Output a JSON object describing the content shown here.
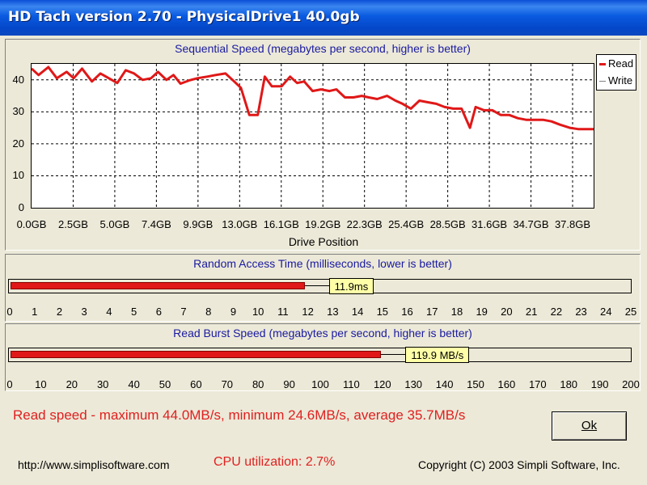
{
  "window": {
    "title": "HD Tach version 2.70 - PhysicalDrive1 40.0gb"
  },
  "sequential": {
    "title": "Sequential Speed (megabytes per second, higher is better)",
    "xaxis_title": "Drive Position",
    "legend": {
      "read": "Read",
      "write": "Write"
    }
  },
  "chart_data": {
    "type": "line",
    "title": "Sequential Speed (megabytes per second, higher is better)",
    "xlabel": "Drive Position",
    "ylabel": "",
    "ylim": [
      0,
      45
    ],
    "yticks": [
      "0",
      "10",
      "20",
      "30",
      "40"
    ],
    "xticks": [
      "0.0GB",
      "2.5GB",
      "5.0GB",
      "7.4GB",
      "9.9GB",
      "13.0GB",
      "16.1GB",
      "19.2GB",
      "22.3GB",
      "25.4GB",
      "28.5GB",
      "31.6GB",
      "34.7GB",
      "37.8GB"
    ],
    "xlim": [
      0,
      40.0
    ],
    "grid": true,
    "legend": "top-right",
    "colors": {
      "read": "#e01818",
      "write": "#808080"
    },
    "series": [
      {
        "name": "Read",
        "x": [
          0,
          0.5,
          1.2,
          1.8,
          2.5,
          3.0,
          3.6,
          4.3,
          4.9,
          5.5,
          6.1,
          6.7,
          7.3,
          7.9,
          8.5,
          9.0,
          9.6,
          10.1,
          10.6,
          11.2,
          11.8,
          12.5,
          13.1,
          13.8,
          14.3,
          14.9,
          15.5,
          16.1,
          16.6,
          17.1,
          17.8,
          18.4,
          18.9,
          19.4,
          20.0,
          20.6,
          21.2,
          21.7,
          22.3,
          22.9,
          23.5,
          24.0,
          24.6,
          25.3,
          25.9,
          26.4,
          27.0,
          27.6,
          28.2,
          28.8,
          29.4,
          30.0,
          30.6,
          31.2,
          31.6,
          32.2,
          32.8,
          33.4,
          34.0,
          34.6,
          35.2,
          35.8,
          36.4,
          37.0,
          37.6,
          38.3,
          38.9,
          39.5,
          40.0
        ],
        "values": [
          43.5,
          41.5,
          44.0,
          40.5,
          42.5,
          40.5,
          43.5,
          39.5,
          42.0,
          40.5,
          39.0,
          43.0,
          42.0,
          40.0,
          40.5,
          42.5,
          40.0,
          41.5,
          38.8,
          39.8,
          40.5,
          41.0,
          41.5,
          42.0,
          40.0,
          37.5,
          29.0,
          29.0,
          41.0,
          38.0,
          38.0,
          41.0,
          39.0,
          39.5,
          36.5,
          37.0,
          36.5,
          37.0,
          34.5,
          34.5,
          35.0,
          34.5,
          34.0,
          35.0,
          33.5,
          32.5,
          31.0,
          33.5,
          33.0,
          32.5,
          31.5,
          31.0,
          31.0,
          25.0,
          31.5,
          30.5,
          30.5,
          29.0,
          29.0,
          28.0,
          27.5,
          27.5,
          27.5,
          27.0,
          26.0,
          25.0,
          24.6,
          24.6,
          24.6
        ]
      }
    ]
  },
  "random_access": {
    "title": "Random Access Time (milliseconds, lower is better)",
    "value": 11.9,
    "value_label": "11.9ms",
    "max": 25,
    "ticks": [
      "0",
      "1",
      "2",
      "3",
      "4",
      "5",
      "6",
      "7",
      "8",
      "9",
      "10",
      "11",
      "12",
      "13",
      "14",
      "15",
      "16",
      "17",
      "18",
      "19",
      "20",
      "21",
      "22",
      "23",
      "24",
      "25"
    ]
  },
  "burst": {
    "title": "Read Burst Speed (megabytes per second, higher is better)",
    "value": 119.9,
    "value_label": "119.9 MB/s",
    "max": 200,
    "ticks": [
      "0",
      "10",
      "20",
      "30",
      "40",
      "50",
      "60",
      "70",
      "80",
      "90",
      "100",
      "110",
      "120",
      "130",
      "140",
      "150",
      "160",
      "170",
      "180",
      "190",
      "200"
    ]
  },
  "summary": "Read speed - maximum 44.0MB/s, minimum 24.6MB/s, average 35.7MB/s",
  "ok_button": "Ok",
  "footer": {
    "url": "http://www.simplisoftware.com",
    "cpu": "CPU utilization: 2.7%",
    "copyright": "Copyright (C) 2003 Simpli Software, Inc."
  }
}
